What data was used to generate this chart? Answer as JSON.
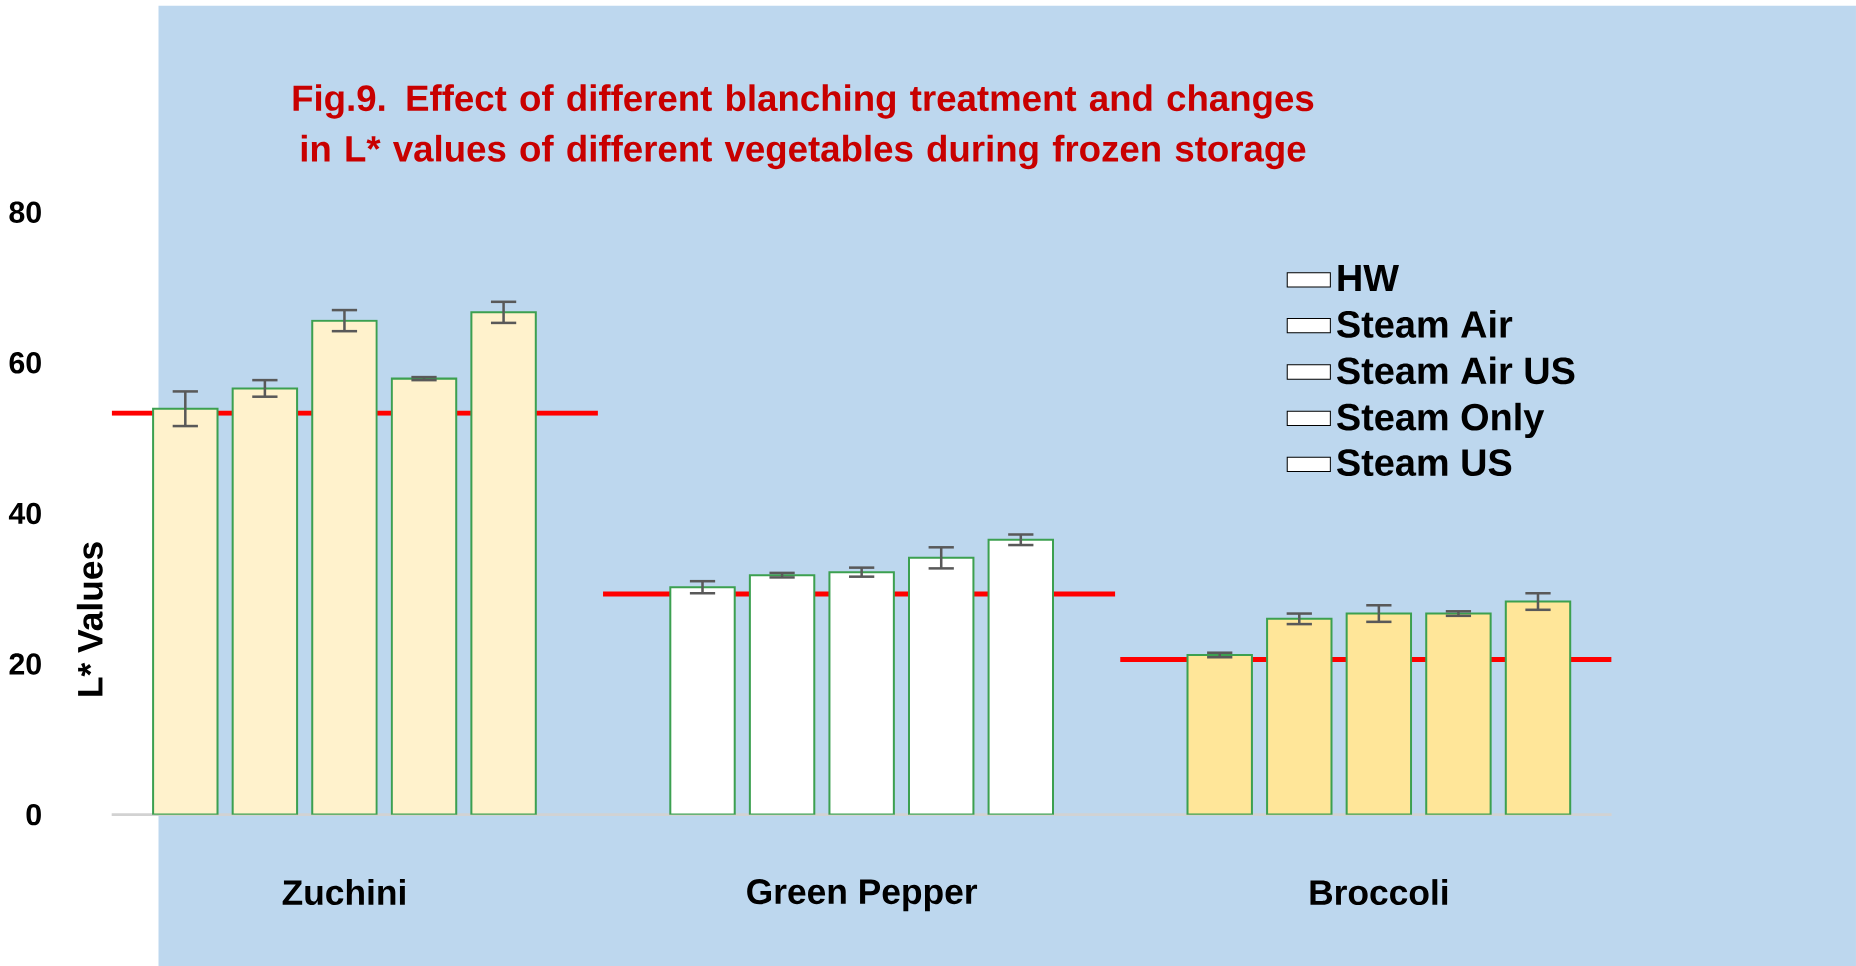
{
  "chart_data": {
    "type": "bar",
    "title": "Fig.9. Effect of different blanching treatment and changes in L* values of different vegetables during frozen storage",
    "ylabel": "L* Values",
    "categories": [
      "Zuchini",
      "Green Pepper",
      "Broccoli"
    ],
    "series": [
      {
        "name": "HW",
        "colors": [
          "#fff2cc",
          "#ffffff",
          "#ffe699"
        ],
        "values": [
          53.9,
          30.2,
          21.2
        ],
        "errors": [
          2.3,
          0.8,
          0.3
        ]
      },
      {
        "name": "Steam Air",
        "colors": [
          "#fff2cc",
          "#ffffff",
          "#ffe699"
        ],
        "values": [
          56.6,
          31.8,
          26.0
        ],
        "errors": [
          1.1,
          0.3,
          0.7
        ]
      },
      {
        "name": "Steam Air US",
        "colors": [
          "#fff2cc",
          "#ffffff",
          "#ffe699"
        ],
        "values": [
          65.6,
          32.2,
          26.7
        ],
        "errors": [
          1.4,
          0.6,
          1.1
        ]
      },
      {
        "name": "Steam Only",
        "colors": [
          "#fff2cc",
          "#ffffff",
          "#ffe699"
        ],
        "values": [
          57.9,
          34.1,
          26.7
        ],
        "errors": [
          0.2,
          1.4,
          0.3
        ]
      },
      {
        "name": "Steam US",
        "colors": [
          "#fff2cc",
          "#ffffff",
          "#ffe699"
        ],
        "values": [
          66.7,
          36.5,
          28.3
        ],
        "errors": [
          1.4,
          0.7,
          1.1
        ]
      }
    ],
    "ref_lines": [
      {
        "axis": "y",
        "value": 53.3,
        "color": "#ff0000"
      },
      {
        "axis": "y",
        "value": 29.3,
        "color": "#ff0000"
      },
      {
        "axis": "y",
        "value": 20.6,
        "color": "#ff0000"
      }
    ],
    "ylim": [
      0,
      80
    ],
    "yticks": [
      0,
      20,
      40,
      60,
      80
    ],
    "legend": "top right",
    "grid": false
  }
}
